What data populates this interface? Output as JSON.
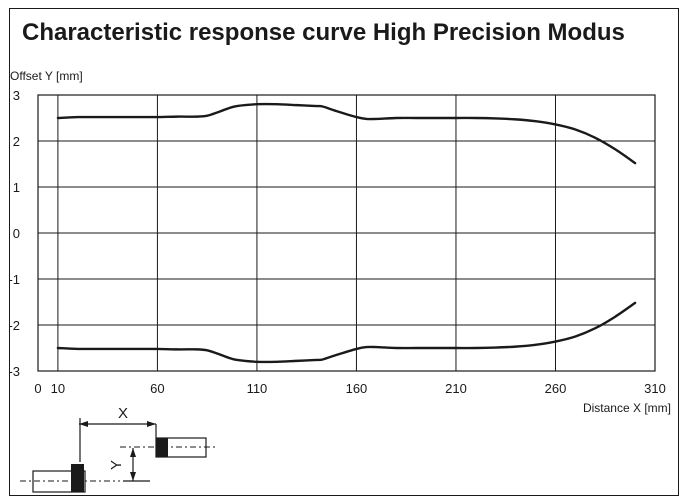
{
  "chart_data": {
    "type": "line",
    "title": "Characteristic response curve High Precision Modus",
    "ylabel": "Offset Y [mm]",
    "xlabel": "Distance X [mm]",
    "xlim": [
      0,
      310
    ],
    "ylim": [
      -3,
      3
    ],
    "x_ticks": [
      "0",
      "10",
      "60",
      "110",
      "160",
      "210",
      "260",
      "310"
    ],
    "y_ticks": [
      "3",
      "2",
      "1",
      "0",
      "-1",
      "-2",
      "-3"
    ],
    "grid": true,
    "series": [
      {
        "x": [
          10,
          20,
          30,
          40,
          50,
          60,
          70,
          80,
          85,
          90,
          95,
          100,
          110,
          120,
          130,
          140,
          143,
          150,
          160,
          165,
          170,
          180,
          190,
          200,
          210,
          220,
          230,
          240,
          250,
          260,
          270,
          280,
          290,
          300
        ],
        "y": [
          2.5,
          2.52,
          2.52,
          2.52,
          2.52,
          2.52,
          2.53,
          2.53,
          2.55,
          2.62,
          2.7,
          2.76,
          2.8,
          2.8,
          2.78,
          2.76,
          2.75,
          2.65,
          2.52,
          2.48,
          2.48,
          2.5,
          2.5,
          2.5,
          2.5,
          2.5,
          2.49,
          2.47,
          2.43,
          2.36,
          2.25,
          2.07,
          1.82,
          1.52
        ]
      },
      {
        "x": [
          10,
          20,
          30,
          40,
          50,
          60,
          70,
          80,
          85,
          90,
          95,
          100,
          110,
          120,
          130,
          140,
          143,
          150,
          160,
          165,
          170,
          180,
          190,
          200,
          210,
          220,
          230,
          240,
          250,
          260,
          270,
          280,
          290,
          300
        ],
        "y": [
          -2.5,
          -2.52,
          -2.52,
          -2.52,
          -2.52,
          -2.52,
          -2.53,
          -2.53,
          -2.55,
          -2.62,
          -2.7,
          -2.76,
          -2.8,
          -2.8,
          -2.78,
          -2.76,
          -2.75,
          -2.65,
          -2.52,
          -2.48,
          -2.48,
          -2.5,
          -2.5,
          -2.5,
          -2.5,
          -2.5,
          -2.49,
          -2.47,
          -2.43,
          -2.36,
          -2.25,
          -2.07,
          -1.82,
          -1.52
        ]
      }
    ]
  },
  "sketch": {
    "x_label": "X",
    "y_label": "Y"
  }
}
